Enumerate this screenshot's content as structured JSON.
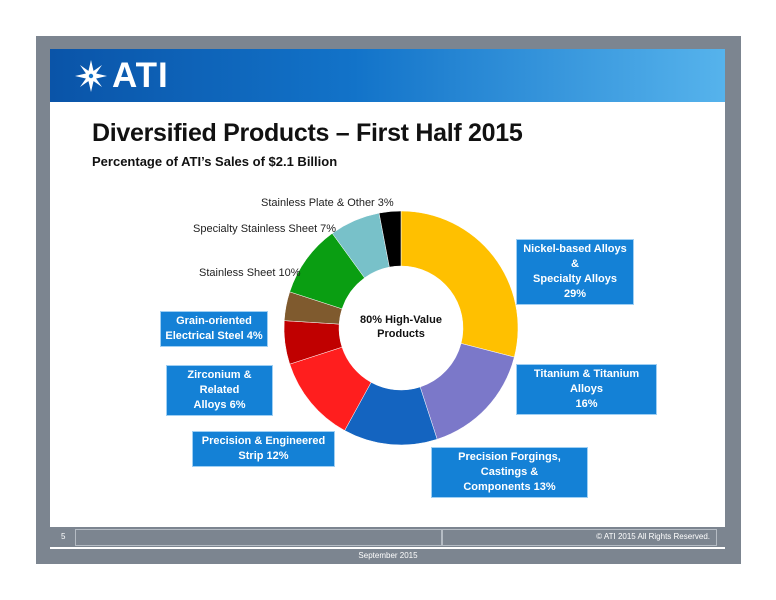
{
  "brand": {
    "logo_text": "ATI",
    "header_color": "#0a54a8",
    "accent_light": "#56b3ec"
  },
  "slide": {
    "title": "Diversified Products – First Half 2015",
    "subtitle": "Percentage of ATI’s Sales of $2.1 Billion"
  },
  "chart_data": {
    "type": "pie",
    "style": "donut",
    "center_label": [
      "80% High-Value",
      "Products"
    ],
    "slices": [
      {
        "label": "Nickel-based Alloys & Specialty Alloys",
        "value": 29,
        "color": "#ffc000",
        "label_lines": [
          "Nickel-based Alloys &",
          "Specialty Alloys 29%"
        ],
        "high_value": true
      },
      {
        "label": "Titanium & Titanium Alloys",
        "value": 16,
        "color": "#7b78c9",
        "label_lines": [
          "Titanium & Titanium Alloys",
          "16%"
        ],
        "high_value": true
      },
      {
        "label": "Precision Forgings, Castings & Components",
        "value": 13,
        "color": "#1464c0",
        "label_lines": [
          "Precision Forgings, Castings &",
          "Components 13%"
        ],
        "high_value": true
      },
      {
        "label": "Precision & Engineered Strip",
        "value": 12,
        "color": "#ff1e1e",
        "label_lines": [
          "Precision & Engineered",
          "Strip 12%"
        ],
        "high_value": true
      },
      {
        "label": "Zirconium & Related Alloys",
        "value": 6,
        "color": "#c00000",
        "label_lines": [
          "Zirconium & Related",
          "Alloys 6%"
        ],
        "high_value": true
      },
      {
        "label": "Grain-oriented Electrical Steel",
        "value": 4,
        "color": "#7f5a2e",
        "label_lines": [
          "Grain-oriented",
          "Electrical Steel 4%"
        ],
        "high_value": true
      },
      {
        "label": "Stainless Sheet",
        "value": 10,
        "color": "#0a9e12",
        "label_lines": [
          "Stainless Sheet 10%"
        ],
        "high_value": false
      },
      {
        "label": "Specialty Stainless Sheet",
        "value": 7,
        "color": "#78c1c9",
        "label_lines": [
          "Specialty Stainless Sheet 7%"
        ],
        "high_value": false
      },
      {
        "label": "Stainless Plate & Other",
        "value": 3,
        "color": "#000000",
        "label_lines": [
          "Stainless Plate & Other 3%"
        ],
        "high_value": false
      }
    ],
    "title": "Diversified Products – First Half 2015",
    "subtitle": "Percentage of ATI’s Sales of $2.1 Billion"
  },
  "footer": {
    "page_number": "5",
    "copyright": "© ATI 2015 All Rights Reserved.",
    "date": "September 2015"
  }
}
